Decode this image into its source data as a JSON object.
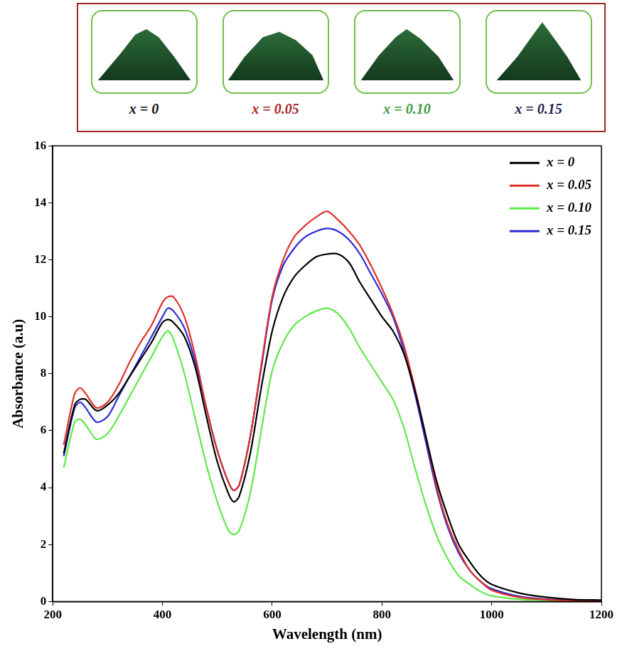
{
  "photo_labels": [
    {
      "label": "x = 0",
      "color": "#111111"
    },
    {
      "label": "x = 0.05",
      "color": "#a8262a"
    },
    {
      "label": "x = 0.10",
      "color": "#3f9a3f"
    },
    {
      "label": "x = 0.15",
      "color": "#1c1f4f"
    }
  ],
  "chart_data": {
    "type": "line",
    "x_label": "Wavelength (nm)",
    "y_label": "Absorbance (a.u)",
    "x": [
      220,
      240,
      250,
      260,
      280,
      300,
      320,
      340,
      360,
      380,
      400,
      410,
      420,
      440,
      460,
      480,
      500,
      520,
      530,
      540,
      560,
      580,
      600,
      620,
      640,
      660,
      680,
      700,
      720,
      740,
      760,
      780,
      800,
      820,
      840,
      860,
      880,
      900,
      920,
      940,
      960,
      980,
      1000,
      1050,
      1100,
      1150,
      1200
    ],
    "series": [
      {
        "name": "x = 0",
        "color": "#000000",
        "values": [
          5.2,
          6.9,
          7.1,
          7.1,
          6.7,
          6.9,
          7.3,
          7.9,
          8.5,
          9.1,
          9.8,
          9.9,
          9.8,
          9.3,
          8.2,
          6.5,
          4.9,
          3.8,
          3.5,
          3.7,
          5.2,
          7.5,
          9.5,
          10.7,
          11.4,
          11.8,
          12.1,
          12.2,
          12.2,
          11.9,
          11.2,
          10.6,
          10.0,
          9.5,
          8.7,
          7.4,
          5.8,
          4.2,
          3.0,
          2.0,
          1.4,
          0.9,
          0.6,
          0.3,
          0.15,
          0.07,
          0.05
        ]
      },
      {
        "name": "x = 0.05",
        "color": "#e0302a",
        "values": [
          5.5,
          7.3,
          7.5,
          7.3,
          6.8,
          7.0,
          7.6,
          8.4,
          9.1,
          9.7,
          10.5,
          10.7,
          10.7,
          10.0,
          8.6,
          6.8,
          5.3,
          4.2,
          3.9,
          4.1,
          5.8,
          8.3,
          10.7,
          12.0,
          12.8,
          13.2,
          13.5,
          13.7,
          13.4,
          13.0,
          12.5,
          11.8,
          11.0,
          10.1,
          9.0,
          7.5,
          5.8,
          4.0,
          2.7,
          1.8,
          1.1,
          0.7,
          0.4,
          0.15,
          0.07,
          0.03,
          0.02
        ]
      },
      {
        "name": "x = 0.10",
        "color": "#5fe84a",
        "values": [
          4.7,
          6.3,
          6.4,
          6.2,
          5.7,
          5.9,
          6.5,
          7.2,
          7.9,
          8.6,
          9.3,
          9.5,
          9.2,
          8.0,
          6.4,
          4.8,
          3.5,
          2.5,
          2.35,
          2.5,
          3.8,
          6.0,
          8.1,
          9.1,
          9.7,
          10.0,
          10.2,
          10.3,
          10.1,
          9.6,
          8.9,
          8.3,
          7.7,
          7.1,
          6.1,
          4.7,
          3.4,
          2.3,
          1.5,
          0.9,
          0.6,
          0.35,
          0.2,
          0.08,
          0.04,
          0.02,
          0.02
        ]
      },
      {
        "name": "x = 0.15",
        "color": "#2a2ad8",
        "values": [
          5.1,
          6.8,
          7.0,
          6.8,
          6.3,
          6.5,
          7.2,
          7.9,
          8.6,
          9.3,
          10.0,
          10.3,
          10.2,
          9.6,
          8.4,
          6.8,
          5.3,
          4.2,
          3.9,
          4.1,
          5.8,
          8.2,
          10.6,
          11.8,
          12.4,
          12.8,
          13.0,
          13.1,
          13.0,
          12.7,
          12.2,
          11.5,
          10.8,
          10.0,
          8.8,
          7.3,
          5.6,
          3.9,
          2.6,
          1.7,
          1.1,
          0.7,
          0.45,
          0.18,
          0.08,
          0.04,
          0.03
        ]
      }
    ],
    "xlim": [
      200,
      1200
    ],
    "xticks": [
      200,
      400,
      600,
      800,
      1000,
      1200
    ],
    "ylim": [
      0,
      16
    ],
    "yticks": [
      0,
      2,
      4,
      6,
      8,
      10,
      12,
      14,
      16
    ],
    "grid": false,
    "legend": "upper right"
  }
}
